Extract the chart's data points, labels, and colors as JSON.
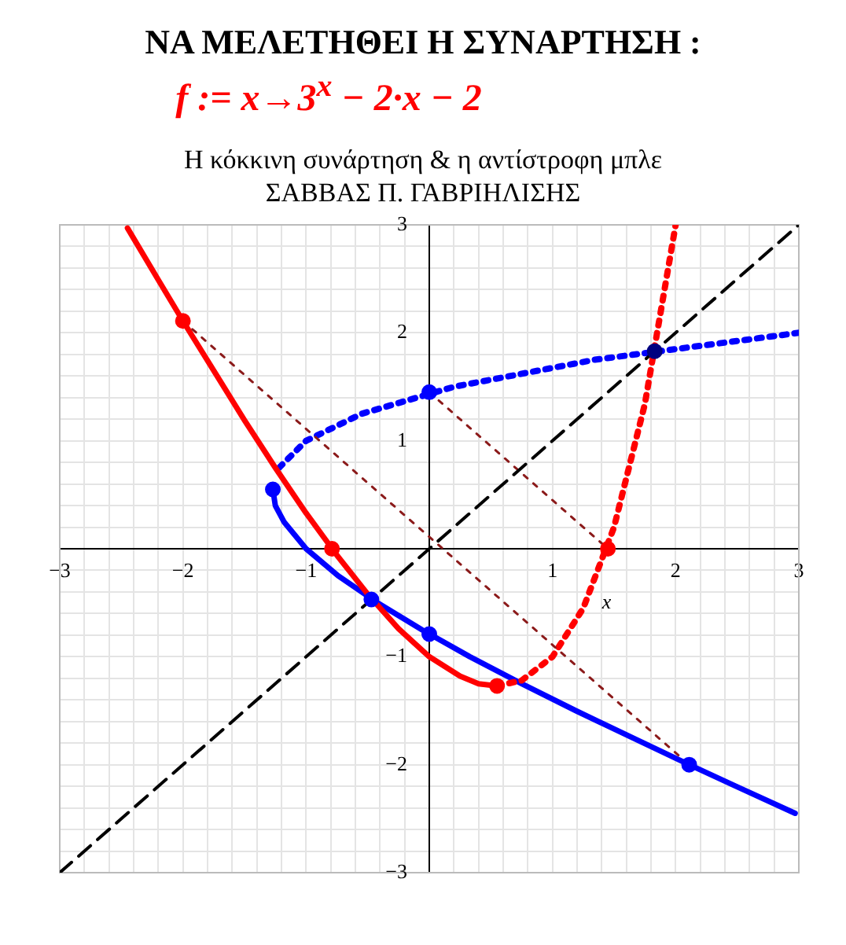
{
  "chart_data": {
    "type": "line",
    "title": "ΝΑ ΜΕΛΕΤΗΘΕΙ Η ΣΥΝΑΡΤΗΣΗ :",
    "subtitle": "f := x→3$^{x}$ − 2·x − 2",
    "annotations": [
      "Η κόκκινη συνάρτηση & η αντίστροφη μπλε",
      "ΣΑΒΒΑΣ Π. ΓΑΒΡΙΗΛΙΣΗΣ"
    ],
    "xlabel": "x",
    "xlim": [
      -3,
      3
    ],
    "ylim": [
      -3,
      3
    ],
    "xticks": [
      -3,
      {
        "value": -2.8,
        "label": null
      },
      {
        "value": -2.6,
        "label": null
      },
      {
        "value": -2.4,
        "label": null
      },
      {
        "value": -2.2,
        "label": null
      },
      -2,
      {
        "value": -1.8,
        "label": null
      },
      {
        "value": -1.6,
        "label": null
      },
      {
        "value": -1.4,
        "label": null
      },
      {
        "value": -1.2,
        "label": null
      },
      -1,
      {
        "value": -0.8,
        "label": null
      },
      {
        "value": -0.6,
        "label": null
      },
      {
        "value": -0.4,
        "label": null
      },
      {
        "value": -0.2,
        "label": null
      },
      {
        "value": 0,
        "label": null
      },
      {
        "value": 0.2,
        "label": null
      },
      {
        "value": 0.4,
        "label": null
      },
      {
        "value": 0.6,
        "label": null
      },
      {
        "value": 0.8,
        "label": null
      },
      1,
      {
        "value": 1.2,
        "label": null
      },
      {
        "value": 1.4,
        "label": null
      },
      {
        "value": 1.6,
        "label": null
      },
      {
        "value": 1.8,
        "label": null
      },
      2,
      {
        "value": 2.2,
        "label": null
      },
      {
        "value": 2.4,
        "label": null
      },
      {
        "value": 2.6,
        "label": null
      },
      {
        "value": 2.8,
        "label": null
      },
      3
    ],
    "yticks": [
      -3,
      {
        "value": -2.8,
        "label": null
      },
      {
        "value": -2.6,
        "label": null
      },
      {
        "value": -2.4,
        "label": null
      },
      {
        "value": -2.2,
        "label": null
      },
      -2,
      {
        "value": -1.8,
        "label": null
      },
      {
        "value": -1.6,
        "label": null
      },
      {
        "value": -1.4,
        "label": null
      },
      {
        "value": -1.2,
        "label": null
      },
      -1,
      {
        "value": -0.8,
        "label": null
      },
      {
        "value": -0.6,
        "label": null
      },
      {
        "value": -0.4,
        "label": null
      },
      {
        "value": -0.2,
        "label": null
      },
      {
        "value": 0,
        "label": null
      },
      {
        "value": 0.2,
        "label": null
      },
      {
        "value": 0.4,
        "label": null
      },
      {
        "value": 0.6,
        "label": null
      },
      {
        "value": 0.8,
        "label": null
      },
      1,
      {
        "value": 1.2,
        "label": null
      },
      {
        "value": 1.4,
        "label": null
      },
      {
        "value": 1.6,
        "label": null
      },
      {
        "value": 1.8,
        "label": null
      },
      2,
      {
        "value": 2.2,
        "label": null
      },
      {
        "value": 2.4,
        "label": null
      },
      {
        "value": 2.6,
        "label": null
      },
      {
        "value": 2.8,
        "label": null
      },
      3
    ],
    "grid": true,
    "legend": false,
    "series": [
      {
        "type": "line",
        "color": "#000000",
        "line_style": "dashed",
        "marker": "none",
        "x": [
          -3,
          3
        ],
        "values": [
          -3,
          3
        ]
      },
      {
        "type": "line",
        "color": "#8b1a1a",
        "line_style": "dotted",
        "marker": "none",
        "x": [
          -2,
          2.11
        ],
        "values": [
          2.11,
          -2
        ]
      },
      {
        "type": "line",
        "color": "#8b1a1a",
        "line_style": "dotted",
        "marker": "none",
        "x": [
          0,
          1.45
        ],
        "values": [
          1.45,
          0
        ]
      },
      {
        "type": "line",
        "color": "#ff0000",
        "line_style": "solid",
        "marker": "none",
        "x": [
          -2.45,
          -2.2,
          -2,
          -1.75,
          -1.5,
          -1.25,
          -1,
          -0.75,
          -0.5,
          -0.25,
          0,
          0.25,
          0.4,
          0.55
        ],
        "values": [
          2.97,
          2.49,
          2.11,
          1.65,
          1.19,
          0.75,
          0.33,
          -0.06,
          -0.42,
          -0.74,
          -1,
          -1.18,
          -1.25,
          -1.27
        ]
      },
      {
        "type": "line",
        "color": "#ff0000",
        "line_style": "dotted",
        "marker": "none",
        "x": [
          0.55,
          0.75,
          1,
          1.25,
          1.5,
          1.75,
          2
        ],
        "values": [
          -1.27,
          -1.22,
          -1,
          -0.55,
          0.2,
          1.34,
          3
        ]
      },
      {
        "type": "line",
        "color": "#0000ff",
        "line_style": "solid",
        "marker": "none",
        "x": [
          2.97,
          2.49,
          2.11,
          1.65,
          1.19,
          0.75,
          0.33,
          -0.06,
          -0.42,
          -0.74,
          -1,
          -1.18,
          -1.25,
          -1.27
        ],
        "values": [
          -2.45,
          -2.2,
          -2,
          -1.75,
          -1.5,
          -1.25,
          -1,
          -0.75,
          -0.5,
          -0.25,
          0,
          0.25,
          0.4,
          0.55
        ]
      },
      {
        "type": "line",
        "color": "#0000ff",
        "line_style": "dotted",
        "marker": "none",
        "x": [
          -1.22,
          -1,
          -0.55,
          0.2,
          1.34,
          3
        ],
        "values": [
          0.75,
          1,
          1.25,
          1.5,
          1.75,
          2
        ]
      },
      {
        "type": "scatter",
        "color": "#ff0000",
        "marker": "circle",
        "x": [
          -2,
          -0.79,
          0.55,
          1.45
        ],
        "values": [
          2.11,
          0,
          -1.27,
          0
        ]
      },
      {
        "type": "scatter",
        "color": "#0000ff",
        "marker": "circle",
        "x": [
          -1.27,
          0,
          0,
          2.11,
          -0.47
        ],
        "values": [
          0.55,
          -0.79,
          1.45,
          -2,
          -0.47
        ]
      },
      {
        "type": "scatter",
        "color": "#000080",
        "marker": "circle",
        "x": [
          1.83
        ],
        "values": [
          1.83
        ]
      }
    ]
  }
}
